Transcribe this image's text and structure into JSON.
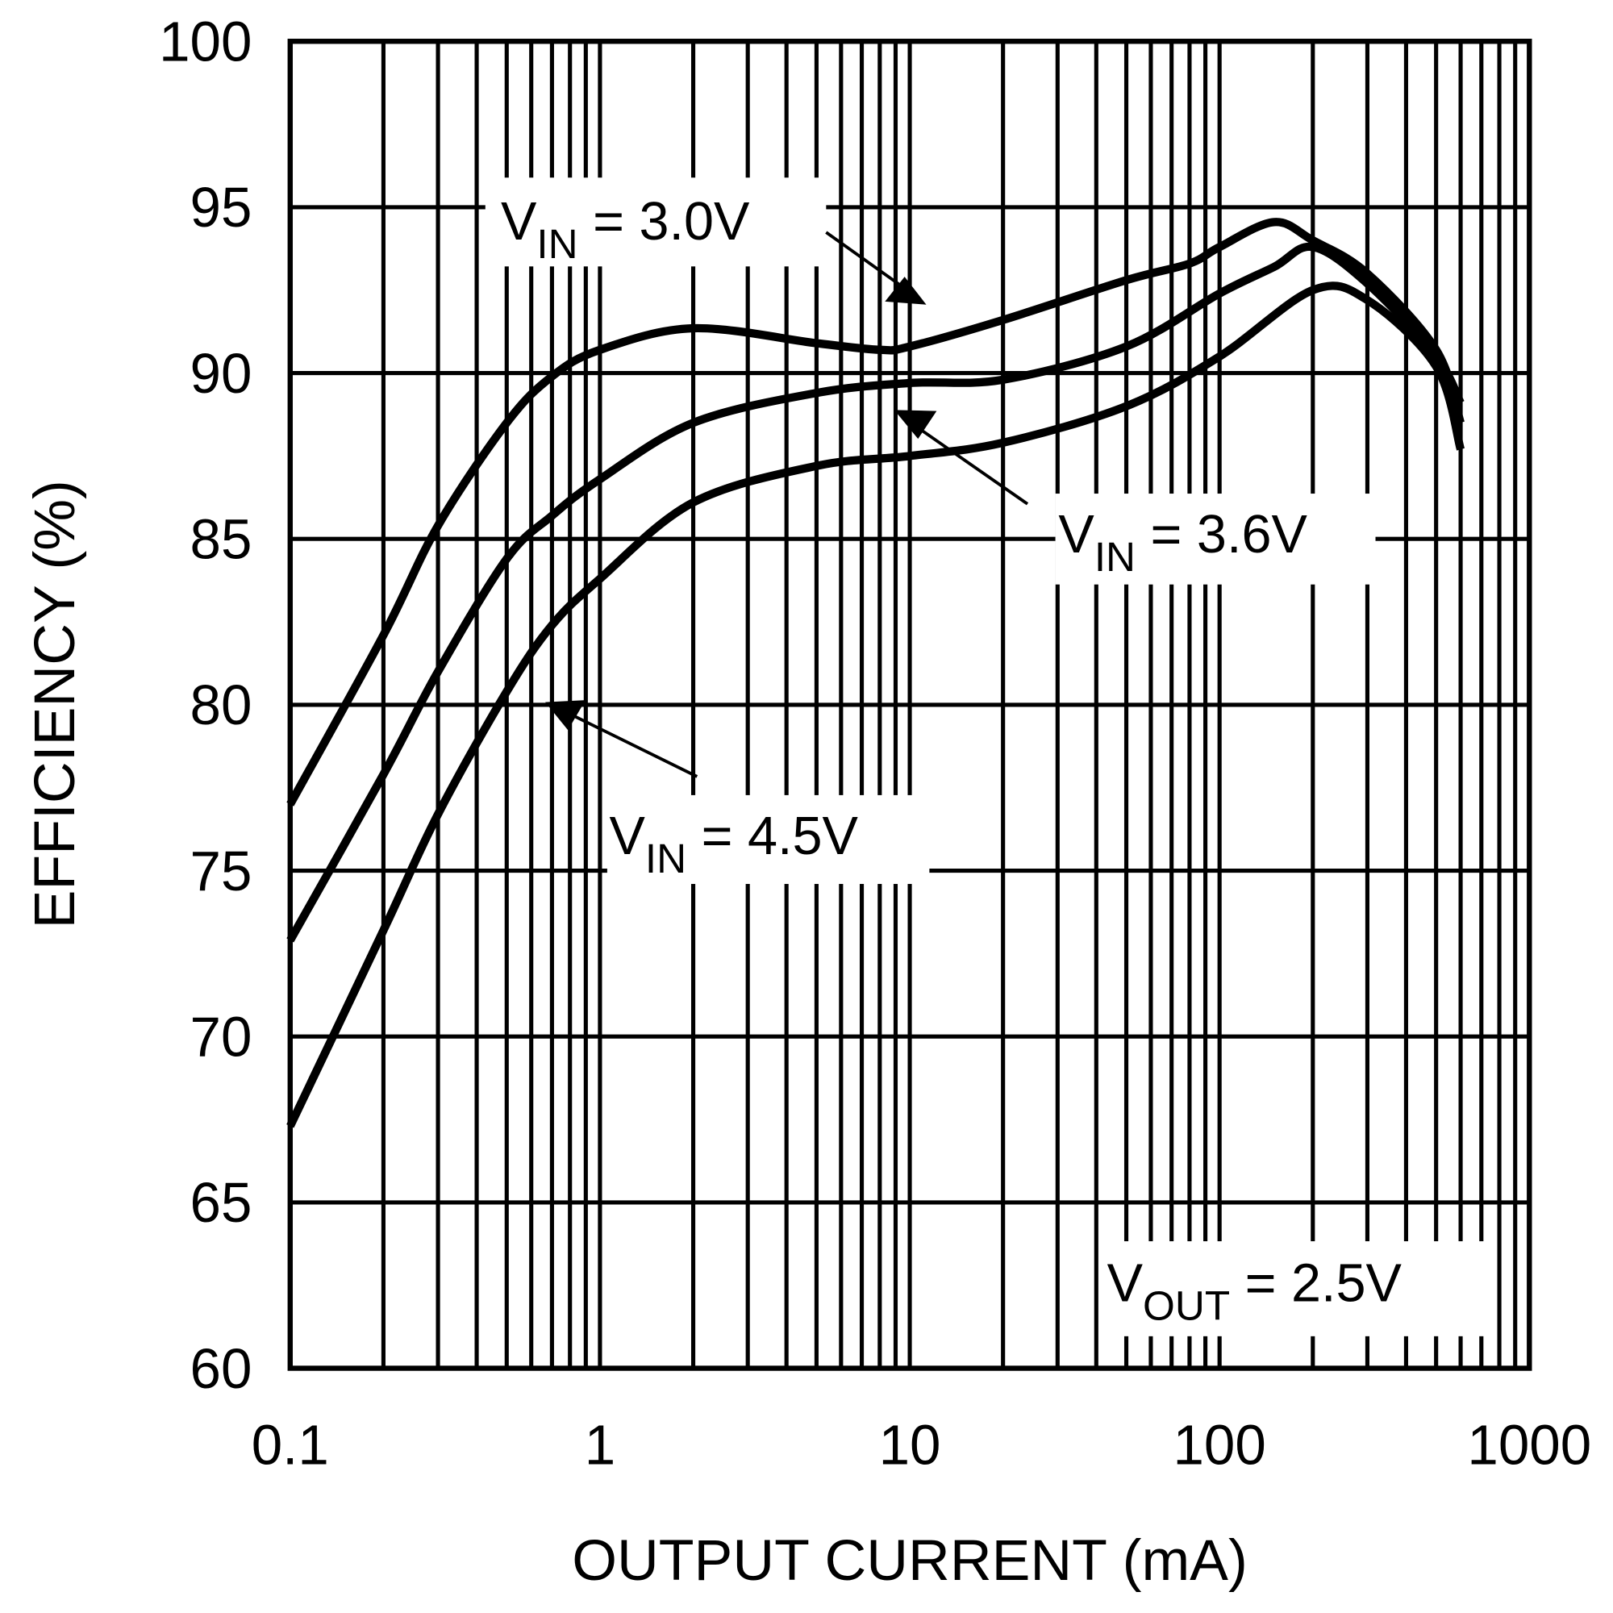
{
  "chart_data": {
    "type": "line",
    "title": "",
    "xlabel": "OUTPUT CURRENT (mA)",
    "ylabel": "EFFICIENCY (%)",
    "xscale": "log",
    "xlim": [
      0.1,
      1000
    ],
    "ylim": [
      60,
      100
    ],
    "grid": true,
    "xticks": [
      "0.1",
      "1",
      "10",
      "100",
      "1000"
    ],
    "yticks": [
      "60",
      "65",
      "70",
      "75",
      "80",
      "85",
      "90",
      "95",
      "100"
    ],
    "series": [
      {
        "name": "VIN = 3.0V",
        "label_main": "V",
        "label_sub": "IN",
        "label_rest": " = 3.0V",
        "x": [
          0.1,
          0.2,
          0.3,
          0.5,
          0.7,
          1,
          2,
          5,
          8,
          10,
          20,
          50,
          80,
          100,
          150,
          200,
          300,
          500,
          600
        ],
        "y": [
          77.0,
          82.1,
          85.4,
          88.5,
          89.9,
          90.7,
          91.35,
          90.9,
          90.7,
          90.8,
          91.6,
          92.8,
          93.3,
          93.8,
          94.55,
          94.0,
          93.0,
          90.7,
          88.5
        ]
      },
      {
        "name": "VIN = 3.6V",
        "label_main": "V",
        "label_sub": "IN",
        "label_rest": " = 3.6V",
        "x": [
          0.1,
          0.2,
          0.3,
          0.5,
          0.7,
          1,
          2,
          5,
          10,
          20,
          50,
          100,
          150,
          200,
          300,
          500,
          600
        ],
        "y": [
          72.9,
          77.9,
          81.0,
          84.4,
          85.7,
          86.8,
          88.5,
          89.4,
          89.7,
          89.8,
          90.8,
          92.4,
          93.2,
          93.8,
          92.7,
          90.5,
          89.1
        ]
      },
      {
        "name": "VIN = 4.5V",
        "label_main": "V",
        "label_sub": "IN",
        "label_rest": " = 4.5V",
        "x": [
          0.1,
          0.2,
          0.3,
          0.5,
          0.7,
          1,
          2,
          5,
          10,
          20,
          50,
          100,
          200,
          300,
          500,
          600
        ],
        "y": [
          67.3,
          73.2,
          76.7,
          80.4,
          82.4,
          83.8,
          86.1,
          87.2,
          87.5,
          87.9,
          89.0,
          90.5,
          92.5,
          92.2,
          90.2,
          87.7
        ]
      }
    ],
    "annotation": {
      "main": "V",
      "sub": "OUT",
      "rest": " = 2.5V"
    },
    "colors": {
      "line": "#000000",
      "background": "#ffffff"
    }
  }
}
